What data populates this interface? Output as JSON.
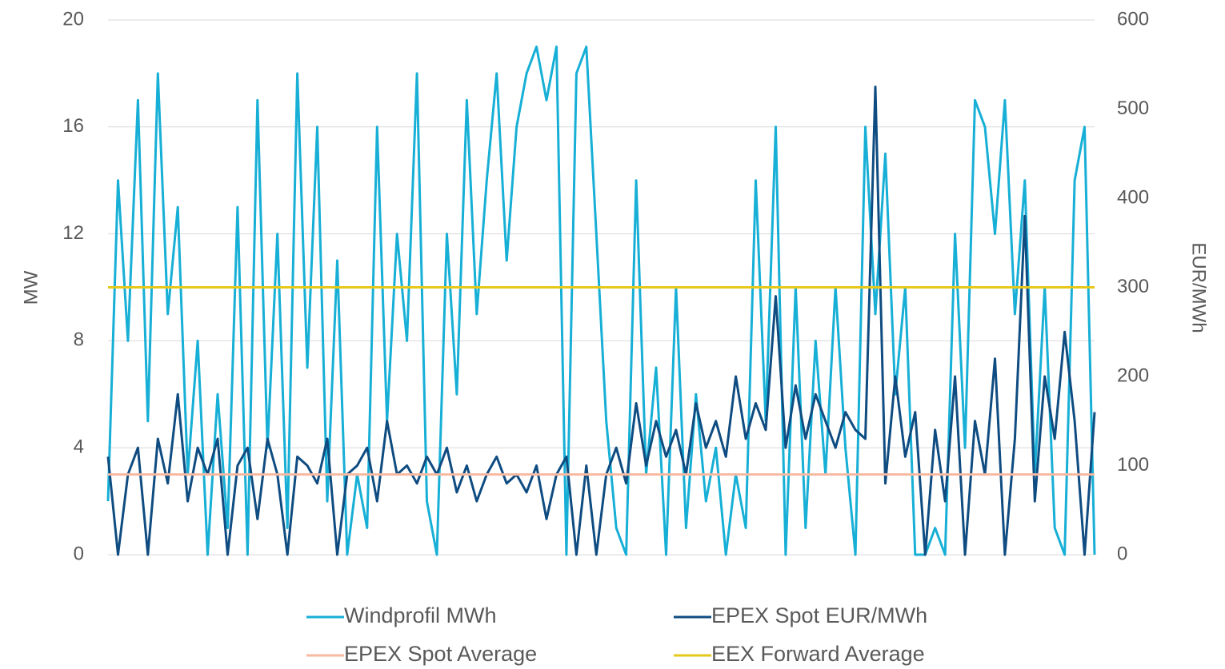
{
  "chart_data": {
    "type": "line",
    "ylabel": "MW",
    "y2label": "EUR/MWh",
    "ylim": [
      0,
      20
    ],
    "yticks": [
      0,
      4,
      8,
      12,
      16,
      20
    ],
    "y2lim": [
      0,
      600
    ],
    "y2ticks": [
      0,
      100,
      200,
      300,
      400,
      500,
      600
    ],
    "grid": true,
    "legend": "bottom",
    "series": [
      {
        "name": "Windprofil MWh",
        "color": "#17afd6",
        "values": [
          2,
          14,
          8,
          17,
          5,
          18,
          9,
          13,
          3,
          8,
          0,
          6,
          1,
          13,
          0,
          17,
          4,
          12,
          1,
          18,
          7,
          16,
          2,
          11,
          0,
          3,
          1,
          16,
          5,
          12,
          8,
          18,
          2,
          0,
          12,
          6,
          17,
          9,
          14,
          18,
          11,
          16,
          18,
          19,
          17,
          19,
          0,
          18,
          19,
          12,
          5,
          1,
          0,
          14,
          3,
          7,
          0,
          10,
          1,
          6,
          2,
          4,
          0,
          3,
          1,
          14,
          5,
          16,
          0,
          10,
          1,
          8,
          3,
          10,
          4,
          0,
          16,
          9,
          15,
          6,
          10,
          0,
          0,
          1,
          0,
          12,
          4,
          17,
          16,
          12,
          17,
          9,
          14,
          3,
          10,
          1,
          0,
          14,
          16,
          0
        ]
      },
      {
        "name": "EPEX Spot EUR/MWh",
        "color": "#0f4c81",
        "axis": "y2",
        "values": [
          110,
          0,
          90,
          120,
          0,
          130,
          80,
          180,
          60,
          120,
          90,
          130,
          0,
          100,
          120,
          40,
          130,
          90,
          0,
          110,
          100,
          80,
          130,
          0,
          90,
          100,
          120,
          60,
          150,
          90,
          100,
          80,
          110,
          90,
          120,
          70,
          100,
          60,
          90,
          110,
          80,
          90,
          70,
          100,
          40,
          90,
          110,
          0,
          100,
          0,
          90,
          120,
          80,
          170,
          100,
          150,
          110,
          140,
          90,
          170,
          120,
          150,
          110,
          200,
          130,
          170,
          140,
          290,
          120,
          190,
          130,
          180,
          150,
          120,
          160,
          140,
          130,
          525,
          80,
          200,
          110,
          160,
          0,
          140,
          60,
          200,
          0,
          150,
          90,
          220,
          0,
          130,
          380,
          60,
          200,
          130,
          250,
          150,
          0,
          160
        ]
      },
      {
        "name": "EPEX Spot Average",
        "color": "#f7b9a1",
        "axis": "y2",
        "values": [
          90,
          90,
          90,
          90,
          90,
          90,
          90,
          90,
          90,
          90,
          90,
          90,
          90,
          90,
          90,
          90,
          90,
          90,
          90,
          90,
          90,
          90,
          90,
          90,
          90,
          90,
          90,
          90,
          90,
          90,
          90,
          90,
          90,
          90,
          90,
          90,
          90,
          90,
          90,
          90,
          90,
          90,
          90,
          90,
          90,
          90,
          90,
          90,
          90,
          90,
          90,
          90,
          90,
          90,
          90,
          90,
          90,
          90,
          90,
          90,
          90,
          90,
          90,
          90,
          90,
          90,
          90,
          90,
          90,
          90,
          90,
          90,
          90,
          90,
          90,
          90,
          90,
          90,
          90,
          90,
          90,
          90,
          90,
          90,
          90,
          90,
          90,
          90,
          90,
          90,
          90,
          90,
          90,
          90,
          90,
          90,
          90,
          90,
          90,
          90
        ]
      },
      {
        "name": "EEX Forward Average",
        "color": "#e6c818",
        "axis": "y2",
        "values": [
          300,
          300,
          300,
          300,
          300,
          300,
          300,
          300,
          300,
          300,
          300,
          300,
          300,
          300,
          300,
          300,
          300,
          300,
          300,
          300,
          300,
          300,
          300,
          300,
          300,
          300,
          300,
          300,
          300,
          300,
          300,
          300,
          300,
          300,
          300,
          300,
          300,
          300,
          300,
          300,
          300,
          300,
          300,
          300,
          300,
          300,
          300,
          300,
          300,
          300,
          300,
          300,
          300,
          300,
          300,
          300,
          300,
          300,
          300,
          300,
          300,
          300,
          300,
          300,
          300,
          300,
          300,
          300,
          300,
          300,
          300,
          300,
          300,
          300,
          300,
          300,
          300,
          300,
          300,
          300,
          300,
          300,
          300,
          300,
          300,
          300,
          300,
          300,
          300,
          300,
          300,
          300,
          300,
          300,
          300,
          300,
          300,
          300,
          300,
          300
        ]
      }
    ]
  }
}
